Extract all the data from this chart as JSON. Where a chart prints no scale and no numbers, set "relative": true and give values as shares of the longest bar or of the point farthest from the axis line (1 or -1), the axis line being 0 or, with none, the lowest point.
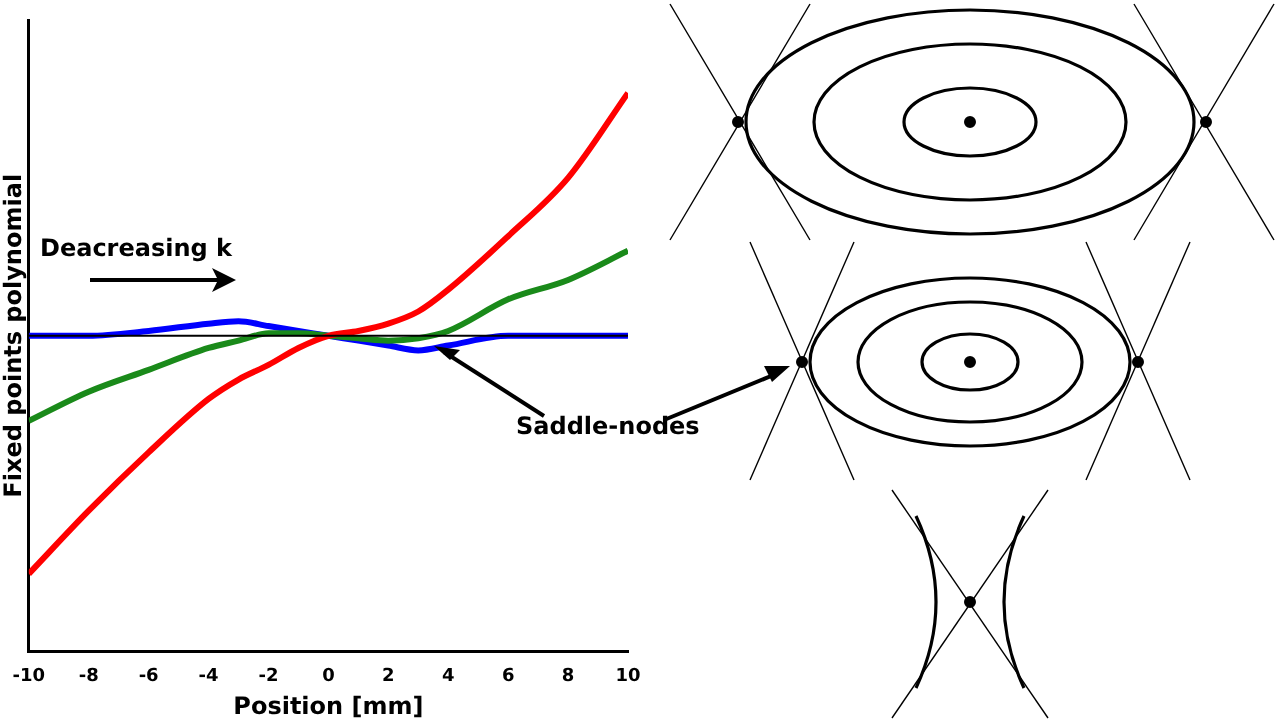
{
  "chart_data": {
    "type": "line",
    "relative": true,
    "xlabel": "Position [mm]",
    "ylabel": "Fixed points polynomial",
    "x": [
      -10,
      -8,
      -6,
      -4,
      -3,
      -2,
      -1,
      0,
      1,
      2,
      3,
      4,
      6,
      8,
      10
    ],
    "xlim": [
      -10,
      10
    ],
    "xticks": [
      -10,
      -8,
      -6,
      -4,
      -2,
      0,
      2,
      4,
      6,
      8,
      10
    ],
    "series": [
      {
        "color": "#ff0000",
        "values": [
          -0.98,
          -0.72,
          -0.48,
          -0.26,
          -0.18,
          -0.12,
          -0.05,
          0,
          0.02,
          0.05,
          0.1,
          0.19,
          0.41,
          0.65,
          1
        ]
      },
      {
        "color": "#1a8a1a",
        "values": [
          -0.35,
          -0.23,
          -0.14,
          -0.05,
          -0.02,
          0.01,
          0.01,
          0,
          -0.01,
          -0.02,
          -0.01,
          0.02,
          0.15,
          0.23,
          0.35
        ]
      },
      {
        "color": "#0000ff",
        "values": [
          0,
          0,
          0.02,
          0.05,
          0.06,
          0.04,
          0.02,
          0,
          -0.02,
          -0.04,
          -0.06,
          -0.04,
          0,
          0,
          0
        ]
      }
    ],
    "annotations": [
      "Deacreasing k",
      "Saddle-nodes"
    ],
    "legend": false,
    "grid": false,
    "marker": "none",
    "line_style": "solid"
  }
}
